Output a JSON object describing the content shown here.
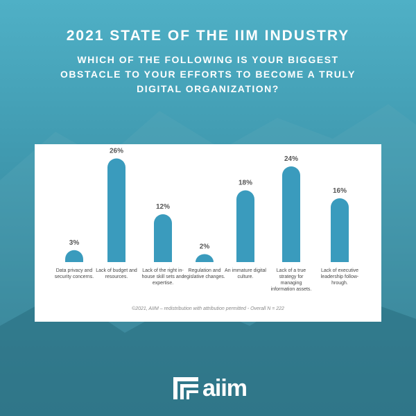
{
  "header": {
    "title": "2021 STATE OF THE IIM INDUSTRY",
    "subtitle": "WHICH OF THE FOLLOWING IS YOUR BIGGEST OBSTACLE TO YOUR EFFORTS TO BECOME A TRULY DIGITAL ORGANIZATION?"
  },
  "chart_data": {
    "type": "bar",
    "categories": [
      "Data privacy and security concerns.",
      "Lack of budget and resources.",
      "Lack of the right in-house skill sets and expertise.",
      "Regulation and egislative changes.",
      "An immature digital culture.",
      "Lack of a true strategy for  managing information assets.",
      "Lack of executive leadership follow-hrough."
    ],
    "values": [
      3,
      26,
      12,
      2,
      18,
      24,
      16
    ],
    "value_labels": [
      "3%",
      "26%",
      "12%",
      "2%",
      "18%",
      "24%",
      "16%"
    ],
    "color": "#3a9bbd",
    "note": "©2021, AIIM – redistribution with attribution permitted - Overall N = 222"
  },
  "footer": {
    "logo": "aiim"
  }
}
